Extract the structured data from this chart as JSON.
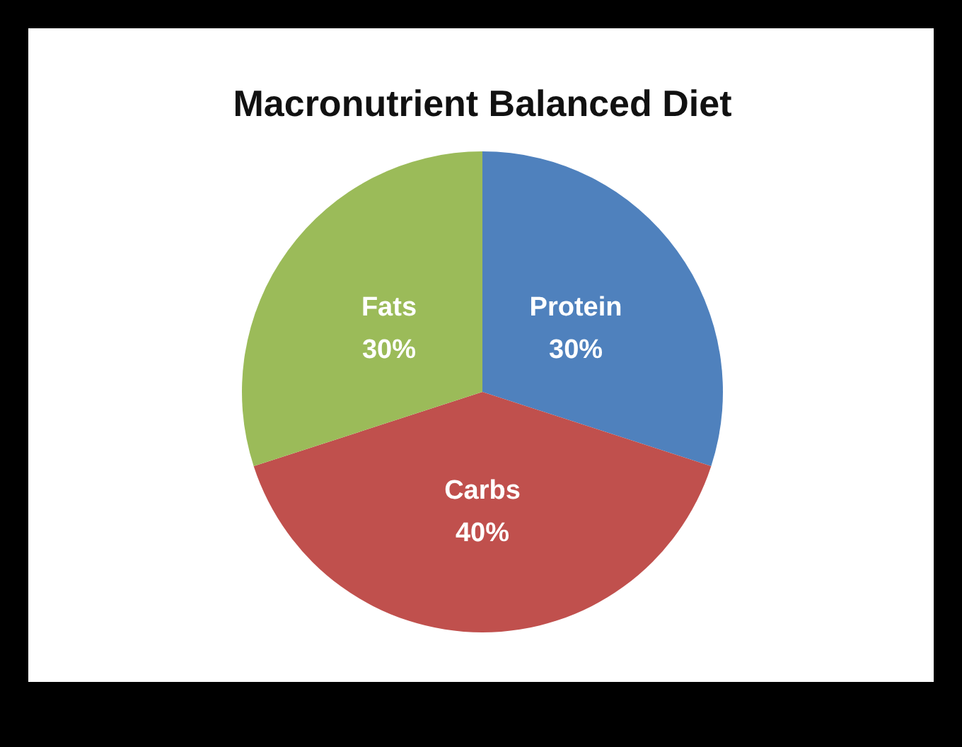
{
  "chart_data": {
    "type": "pie",
    "title": "Macronutrient Balanced Diet",
    "categories": [
      "Protein",
      "Carbs",
      "Fats"
    ],
    "values": [
      30,
      40,
      30
    ],
    "colors": [
      "#4f81bd",
      "#c0504d",
      "#9bbb59"
    ],
    "value_labels": [
      "30%",
      "40%",
      "30%"
    ]
  }
}
